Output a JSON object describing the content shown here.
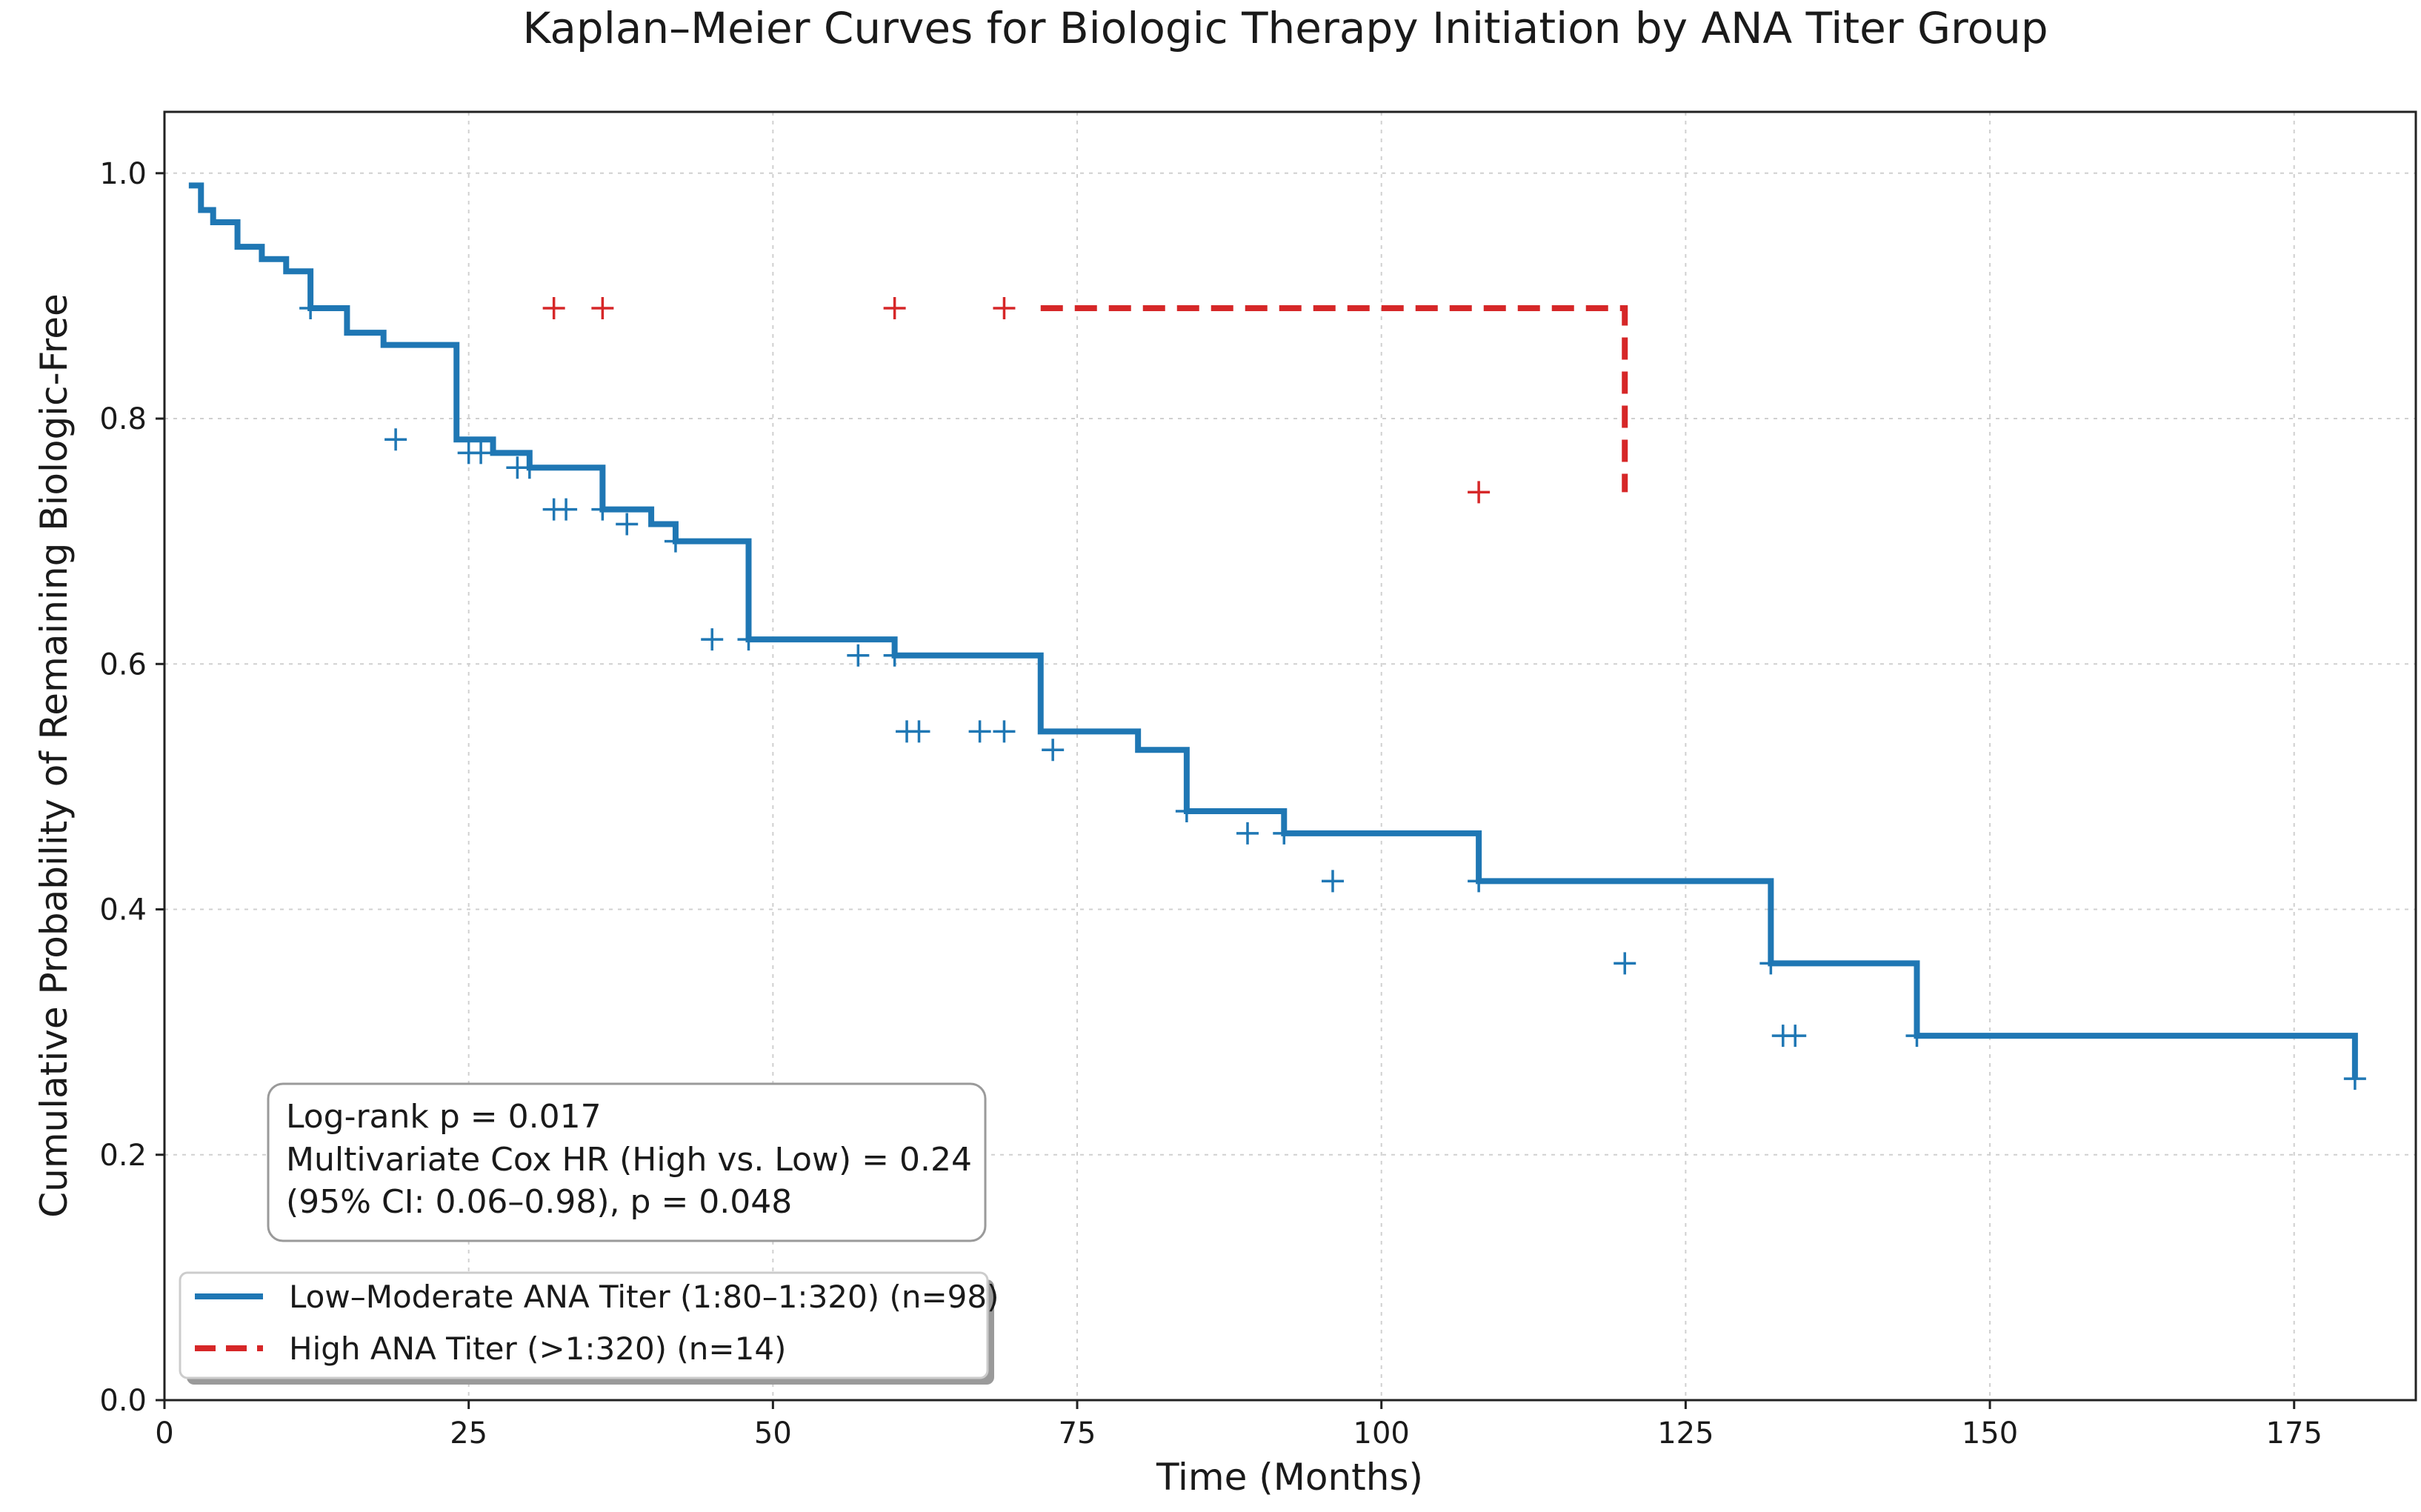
{
  "chart_data": {
    "type": "line",
    "title": "Kaplan–Meier Curves for Biologic Therapy Initiation by ANA Titer Group",
    "xlabel": "Time (Months)",
    "ylabel": "Cumulative Probability of Remaining Biologic-Free",
    "xlim": [
      0,
      185
    ],
    "ylim": [
      0,
      1.05
    ],
    "x_ticks": [
      0,
      25,
      50,
      75,
      100,
      125,
      150,
      175
    ],
    "y_ticks": [
      0.0,
      0.2,
      0.4,
      0.6,
      0.8,
      1.0
    ],
    "x_tick_labels": [
      "0",
      "25",
      "50",
      "75",
      "100",
      "125",
      "150",
      "175"
    ],
    "y_tick_labels": [
      "0.0",
      "0.2",
      "0.4",
      "0.6",
      "0.8",
      "1.0"
    ],
    "grid": true,
    "legend_position": "bottom-left",
    "annotation": {
      "lines": [
        "Log-rank p = 0.017",
        "Multivariate Cox HR (High vs. Low) = 0.24",
        "(95% CI: 0.06–0.98), p = 0.048"
      ]
    },
    "series": [
      {
        "name": "Low–Moderate ANA Titer (1:80–1:320) (n=98)",
        "color": "#1f77b4",
        "line_style": "solid",
        "steps": [
          [
            2,
            0.99
          ],
          [
            3,
            0.97
          ],
          [
            4,
            0.96
          ],
          [
            6,
            0.94
          ],
          [
            8,
            0.93
          ],
          [
            10,
            0.92
          ],
          [
            12,
            0.89
          ],
          [
            15,
            0.87
          ],
          [
            18,
            0.86
          ],
          [
            24,
            0.783
          ],
          [
            27,
            0.772
          ],
          [
            30,
            0.76
          ],
          [
            36,
            0.726
          ],
          [
            40,
            0.714
          ],
          [
            42,
            0.7
          ],
          [
            48,
            0.62
          ],
          [
            60,
            0.607
          ],
          [
            72,
            0.545
          ],
          [
            80,
            0.53
          ],
          [
            84,
            0.48
          ],
          [
            92,
            0.462
          ],
          [
            108,
            0.423
          ],
          [
            132,
            0.356
          ],
          [
            144,
            0.297
          ],
          [
            180,
            0.262
          ]
        ],
        "censored": [
          [
            12,
            0.89
          ],
          [
            19,
            0.783
          ],
          [
            25,
            0.772
          ],
          [
            26,
            0.772
          ],
          [
            29,
            0.76
          ],
          [
            30,
            0.76
          ],
          [
            32,
            0.726
          ],
          [
            33,
            0.726
          ],
          [
            36,
            0.726
          ],
          [
            38,
            0.714
          ],
          [
            42,
            0.7
          ],
          [
            45,
            0.62
          ],
          [
            48,
            0.62
          ],
          [
            57,
            0.607
          ],
          [
            60,
            0.607
          ],
          [
            61,
            0.545
          ],
          [
            62,
            0.545
          ],
          [
            67,
            0.545
          ],
          [
            69,
            0.545
          ],
          [
            73,
            0.53
          ],
          [
            84,
            0.48
          ],
          [
            89,
            0.462
          ],
          [
            92,
            0.462
          ],
          [
            96,
            0.423
          ],
          [
            108,
            0.423
          ],
          [
            120,
            0.356
          ],
          [
            132,
            0.356
          ],
          [
            133,
            0.297
          ],
          [
            134,
            0.297
          ],
          [
            144,
            0.297
          ],
          [
            180,
            0.262
          ]
        ]
      },
      {
        "name": "High ANA Titer (>1:320) (n=14)",
        "color": "#d62728",
        "line_style": "dashed",
        "steps": [
          [
            72,
            0.89
          ],
          [
            120,
            0.74
          ]
        ],
        "censored": [
          [
            32,
            0.89
          ],
          [
            36,
            0.89
          ],
          [
            60,
            0.89
          ],
          [
            69,
            0.89
          ],
          [
            108,
            0.74
          ]
        ]
      }
    ]
  }
}
